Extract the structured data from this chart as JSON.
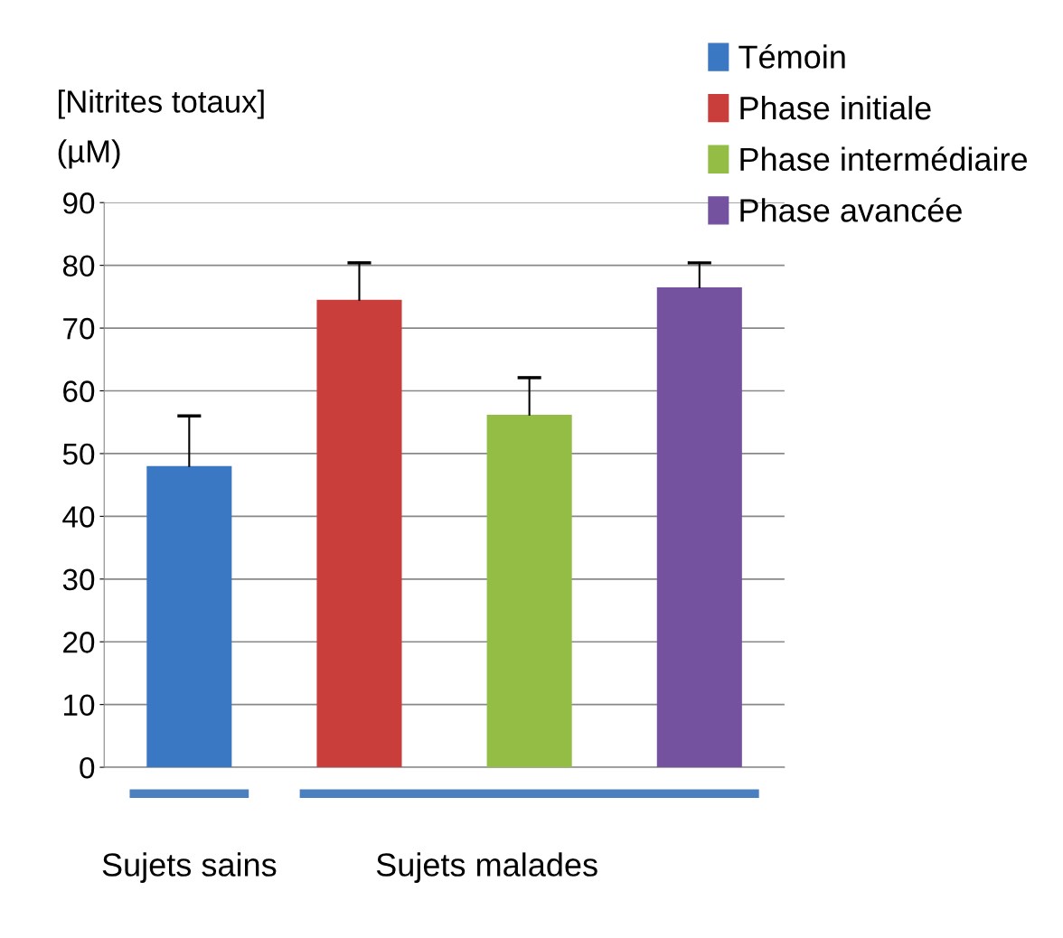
{
  "chart_data": {
    "type": "bar",
    "ylabel": "[Nitrites totaux]\n(µM)",
    "categories": [
      null,
      null,
      null,
      null
    ],
    "series": [
      {
        "name": "Témoin",
        "color": "#3b78c4",
        "values": [
          48,
          null,
          null,
          null
        ],
        "errors": [
          [
            48,
            56
          ],
          null,
          null,
          null
        ]
      },
      {
        "name": "Phase initiale",
        "color": "#c93e3b",
        "values": [
          null,
          74.5,
          null,
          null
        ],
        "errors": [
          null,
          [
            74.5,
            80.4
          ],
          null,
          null
        ]
      },
      {
        "name": "Phase intermédiaire",
        "color": "#94bd45",
        "values": [
          null,
          null,
          56.2,
          null
        ],
        "errors": [
          null,
          null,
          [
            56.2,
            62.1
          ],
          null
        ]
      },
      {
        "name": "Phase avancée",
        "color": "#7552a0",
        "values": [
          null,
          null,
          null,
          76.5
        ],
        "errors": [
          null,
          null,
          null,
          [
            76.5,
            80.4
          ]
        ]
      }
    ],
    "ylim": [
      0,
      90
    ],
    "yticks": [
      0,
      10,
      20,
      30,
      40,
      50,
      60,
      70,
      80,
      90
    ],
    "grid": "y",
    "legend": "top right",
    "annotations": [
      "Sujets sains",
      "Sujets malades"
    ]
  }
}
